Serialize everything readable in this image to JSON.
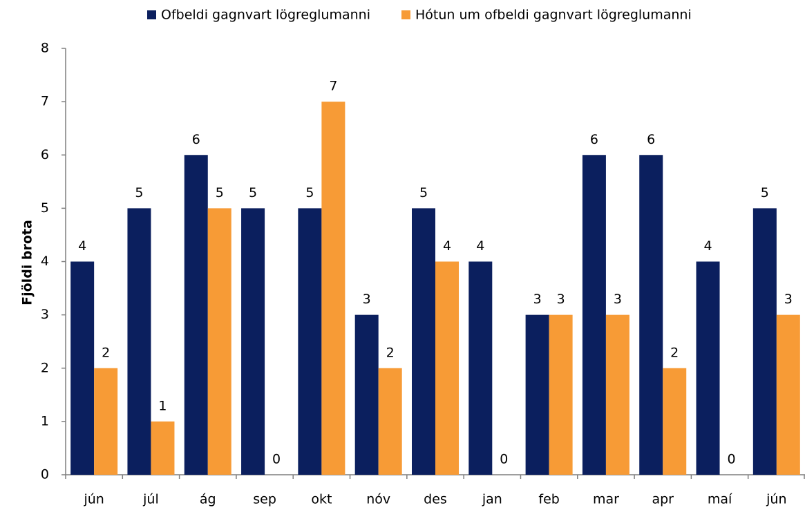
{
  "chart_data": {
    "type": "bar",
    "y_label": "Fjöldi brota",
    "categories": [
      "jún",
      "júl",
      "ág",
      "sep",
      "okt",
      "nóv",
      "des",
      "jan",
      "feb",
      "mar",
      "apr",
      "maí",
      "jún"
    ],
    "series": [
      {
        "name": "Ofbeldi gagnvart lögreglumanni",
        "color": "#0b1f5e",
        "values": [
          4,
          5,
          6,
          5,
          5,
          3,
          5,
          4,
          3,
          6,
          6,
          4,
          5
        ]
      },
      {
        "name": "Hótun um ofbeldi gagnvart lögreglumanni",
        "color": "#f79b36",
        "values": [
          2,
          1,
          5,
          0,
          7,
          2,
          4,
          0,
          3,
          3,
          2,
          0,
          3
        ]
      }
    ],
    "ylim": [
      0,
      8
    ],
    "yticks": [
      0,
      1,
      2,
      3,
      4,
      5,
      6,
      7,
      8
    ],
    "grid": false,
    "legend": "top"
  }
}
